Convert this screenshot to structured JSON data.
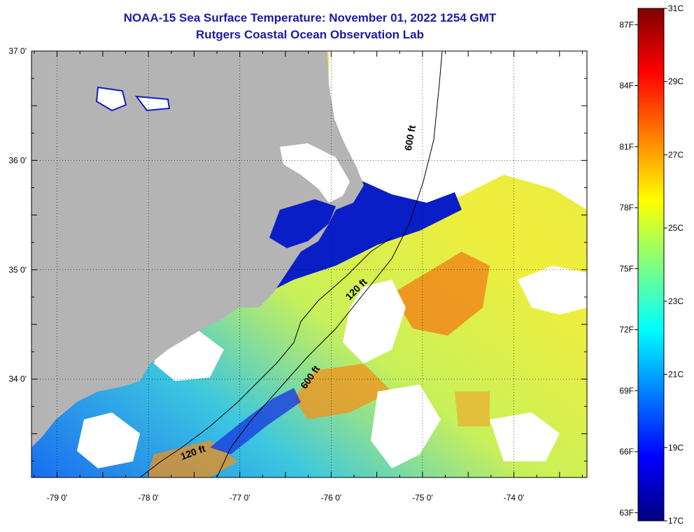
{
  "title": {
    "line1": "NOAA-15 Sea Surface Temperature:  November 01, 2022 1254 GMT",
    "line2": "Rutgers Coastal Ocean Observation Lab"
  },
  "map": {
    "lon_range": [
      -79.28,
      -73.2
    ],
    "lat_range": [
      33.1,
      37.0
    ],
    "lat_ticks": [
      {
        "value": 37.0,
        "label": "37 0'"
      },
      {
        "value": 36.0,
        "label": "36 0'"
      },
      {
        "value": 35.0,
        "label": "35 0'"
      },
      {
        "value": 34.0,
        "label": "34 0'"
      }
    ],
    "lon_ticks": [
      {
        "value": -79.0,
        "label": "-79 0'"
      },
      {
        "value": -78.0,
        "label": "-78 0'"
      },
      {
        "value": -77.0,
        "label": "-77 0'"
      },
      {
        "value": -76.0,
        "label": "-76 0'"
      },
      {
        "value": -75.0,
        "label": "-75 0'"
      },
      {
        "value": -74.0,
        "label": "-74 0'"
      }
    ],
    "contour_labels": [
      {
        "text": "600 ft",
        "lon": -75.1,
        "lat": 36.2
      },
      {
        "text": "120 ft",
        "lon": -75.7,
        "lat": 34.8
      },
      {
        "text": "600 ft",
        "lon": -76.2,
        "lat": 34.0
      },
      {
        "text": "120 ft",
        "lon": -77.5,
        "lat": 33.3
      }
    ],
    "land_color": "#b4b4b4",
    "cloud_color": "#ffffff"
  },
  "colorbar": {
    "range_c": [
      17,
      31
    ],
    "celsius_labels": [
      "31C",
      "29C",
      "27C",
      "25C",
      "23C",
      "21C",
      "19C",
      "17C"
    ],
    "fahrenheit_labels": [
      "87F",
      "84F",
      "81F",
      "78F",
      "75F",
      "72F",
      "69F",
      "66F",
      "63F"
    ],
    "fahrenheit_values": [
      87,
      84,
      81,
      78,
      75,
      72,
      69,
      66,
      63
    ],
    "colors": [
      "#00007f",
      "#0000ff",
      "#0080ff",
      "#00ffff",
      "#80ff80",
      "#ffff00",
      "#ff8000",
      "#ff0000",
      "#7f0000"
    ]
  }
}
